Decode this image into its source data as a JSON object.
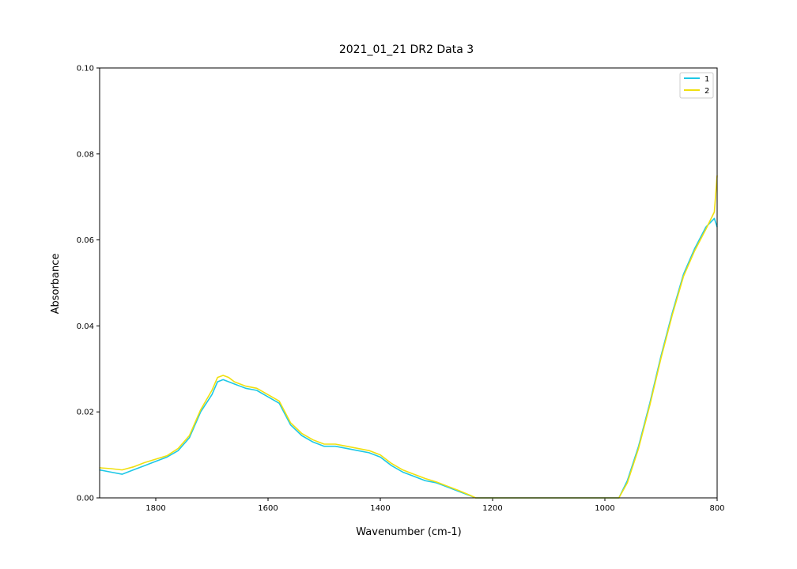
{
  "chart_data": {
    "type": "line",
    "title": "2021_01_21 DR2 Data 3",
    "xlabel": "Wavenumber (cm-1)",
    "ylabel": "Absorbance",
    "xlim": [
      1900,
      800
    ],
    "ylim": [
      0.0,
      0.1
    ],
    "xticks": [
      "1800",
      "1600",
      "1400",
      "1200",
      "1000",
      "800"
    ],
    "yticks": [
      "0.00",
      "0.02",
      "0.04",
      "0.06",
      "0.08",
      "0.10"
    ],
    "grid": false,
    "legend_position": "top-right",
    "series": [
      {
        "name": "1",
        "color": "#1ec8e6",
        "points": [
          [
            1900,
            0.0065
          ],
          [
            1880,
            0.006
          ],
          [
            1860,
            0.0055
          ],
          [
            1840,
            0.0065
          ],
          [
            1820,
            0.0075
          ],
          [
            1800,
            0.0085
          ],
          [
            1780,
            0.0095
          ],
          [
            1760,
            0.011
          ],
          [
            1740,
            0.014
          ],
          [
            1720,
            0.02
          ],
          [
            1700,
            0.024
          ],
          [
            1690,
            0.027
          ],
          [
            1680,
            0.0275
          ],
          [
            1670,
            0.027
          ],
          [
            1660,
            0.0265
          ],
          [
            1650,
            0.026
          ],
          [
            1640,
            0.0255
          ],
          [
            1620,
            0.025
          ],
          [
            1600,
            0.0235
          ],
          [
            1580,
            0.022
          ],
          [
            1560,
            0.017
          ],
          [
            1540,
            0.0145
          ],
          [
            1520,
            0.013
          ],
          [
            1500,
            0.012
          ],
          [
            1480,
            0.012
          ],
          [
            1460,
            0.0115
          ],
          [
            1440,
            0.011
          ],
          [
            1420,
            0.0105
          ],
          [
            1400,
            0.0095
          ],
          [
            1380,
            0.0075
          ],
          [
            1360,
            0.006
          ],
          [
            1340,
            0.005
          ],
          [
            1320,
            0.004
          ],
          [
            1300,
            0.0035
          ],
          [
            1280,
            0.0025
          ],
          [
            1260,
            0.0015
          ],
          [
            1240,
            0.0005
          ],
          [
            1230,
            0.0
          ],
          [
            985,
            0.0
          ],
          [
            975,
            0.0
          ],
          [
            960,
            0.004
          ],
          [
            940,
            0.012
          ],
          [
            920,
            0.022
          ],
          [
            900,
            0.033
          ],
          [
            880,
            0.043
          ],
          [
            860,
            0.052
          ],
          [
            840,
            0.058
          ],
          [
            820,
            0.063
          ],
          [
            805,
            0.065
          ],
          [
            800,
            0.063
          ]
        ]
      },
      {
        "name": "2",
        "color": "#f0e010",
        "points": [
          [
            1900,
            0.007
          ],
          [
            1880,
            0.0068
          ],
          [
            1860,
            0.0065
          ],
          [
            1840,
            0.0072
          ],
          [
            1820,
            0.0082
          ],
          [
            1800,
            0.009
          ],
          [
            1780,
            0.0098
          ],
          [
            1760,
            0.0115
          ],
          [
            1740,
            0.0145
          ],
          [
            1720,
            0.0205
          ],
          [
            1700,
            0.025
          ],
          [
            1690,
            0.028
          ],
          [
            1680,
            0.0285
          ],
          [
            1670,
            0.028
          ],
          [
            1660,
            0.027
          ],
          [
            1650,
            0.0265
          ],
          [
            1640,
            0.026
          ],
          [
            1620,
            0.0255
          ],
          [
            1600,
            0.024
          ],
          [
            1580,
            0.0225
          ],
          [
            1560,
            0.0175
          ],
          [
            1540,
            0.015
          ],
          [
            1520,
            0.0135
          ],
          [
            1500,
            0.0125
          ],
          [
            1480,
            0.0125
          ],
          [
            1460,
            0.012
          ],
          [
            1440,
            0.0115
          ],
          [
            1420,
            0.011
          ],
          [
            1400,
            0.01
          ],
          [
            1380,
            0.008
          ],
          [
            1360,
            0.0065
          ],
          [
            1340,
            0.0055
          ],
          [
            1320,
            0.0045
          ],
          [
            1300,
            0.0037
          ],
          [
            1280,
            0.0027
          ],
          [
            1260,
            0.0017
          ],
          [
            1240,
            0.0006
          ],
          [
            1230,
            0.0
          ],
          [
            985,
            0.0
          ],
          [
            975,
            0.0
          ],
          [
            960,
            0.0035
          ],
          [
            940,
            0.0115
          ],
          [
            920,
            0.0215
          ],
          [
            900,
            0.0325
          ],
          [
            880,
            0.0425
          ],
          [
            860,
            0.0515
          ],
          [
            840,
            0.0575
          ],
          [
            820,
            0.0625
          ],
          [
            805,
            0.0665
          ],
          [
            800,
            0.075
          ]
        ]
      }
    ]
  }
}
